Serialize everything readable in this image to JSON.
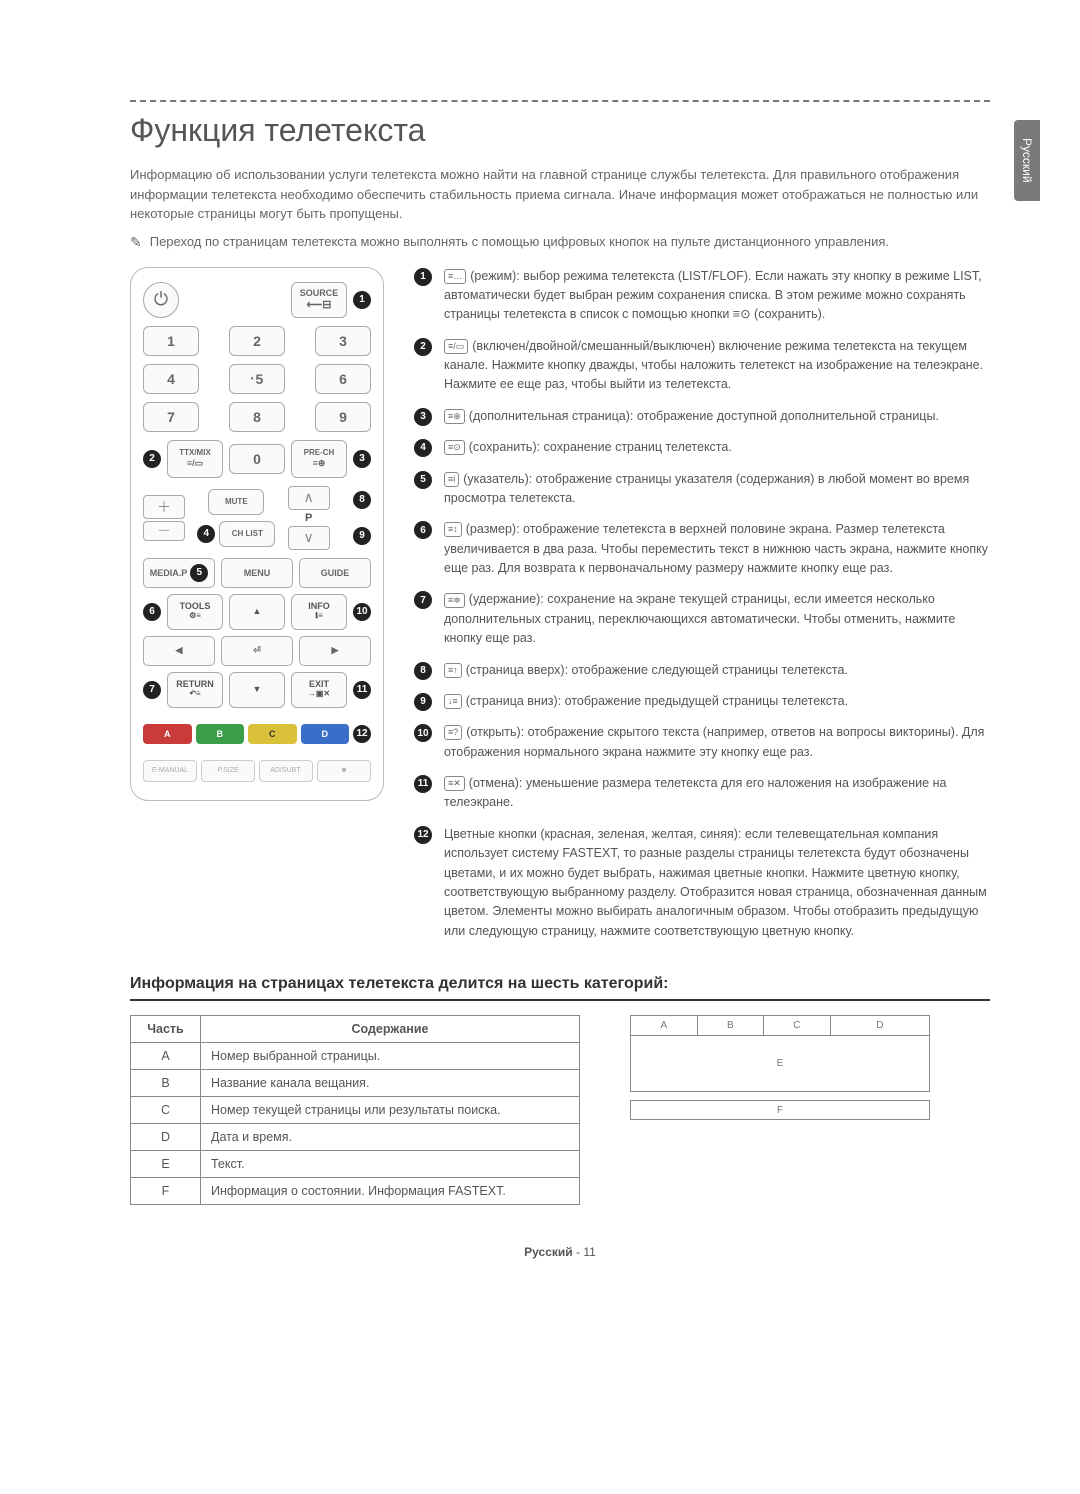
{
  "side_tab": "Русский",
  "title": "Функция телетекста",
  "intro": "Информацию об использовании услуги телетекста можно найти на главной странице службы телетекста. Для правильного отображения информации телетекста необходимо обеспечить стабильность приема сигнала. Иначе информация может отображаться не полностью или некоторые страницы могут быть пропущены.",
  "note": "Переход по страницам телетекста можно выполнять с помощью цифровых кнопок на пульте дистанционного управления.",
  "remote": {
    "source": "SOURCE",
    "nums": [
      "1",
      "2",
      "3",
      "4",
      "5",
      "6",
      "7",
      "8",
      "9",
      "0"
    ],
    "ttx": "TTX/MIX",
    "prech": "PRE-CH",
    "mute": "MUTE",
    "chlist": "CH LIST",
    "p_label": "P",
    "media": "MEDIA.P",
    "menu": "MENU",
    "guide": "GUIDE",
    "tools": "TOOLS",
    "info": "INFO",
    "return": "RETURN",
    "exit": "EXIT",
    "colors": {
      "a": "A",
      "b": "B",
      "c": "C",
      "d": "D"
    },
    "color_hex": {
      "a": "#c93a3a",
      "b": "#3a9e4a",
      "c": "#d9c23a",
      "d": "#3a6fc9"
    },
    "bottom": [
      "E-MANUAL",
      "P.SIZE",
      "AD/SUBT.",
      "■"
    ]
  },
  "items": [
    {
      "num": "1",
      "icon": "≡…",
      "text": "(режим): выбор режима телетекста (LIST/FLOF). Если нажать эту кнопку в режиме LIST, автоматически будет выбран режим сохранения списка. В этом режиме можно сохранять страницы телетекста в список с помощью кнопки ≡⊙ (сохранить)."
    },
    {
      "num": "2",
      "icon": "≡/▭",
      "text": "(включен/двойной/смешанный/выключен) включение режима телетекста на текущем канале. Нажмите кнопку дважды, чтобы наложить телетекст на изображение на телеэкране. Нажмите ее еще раз, чтобы выйти из телетекста."
    },
    {
      "num": "3",
      "icon": "≡⊕",
      "text": "(дополнительная страница): отображение доступной дополнительной страницы."
    },
    {
      "num": "4",
      "icon": "≡⊙",
      "text": "(сохранить): сохранение страниц телетекста."
    },
    {
      "num": "5",
      "icon": "≡i",
      "text": "(указатель): отображение страницы указателя (содержания) в любой момент во время просмотра телетекста."
    },
    {
      "num": "6",
      "icon": "≡↕",
      "text": "(размер): отображение телетекста в верхней половине экрана. Размер телетекста увеличивается в два раза. Чтобы переместить текст в нижнюю часть экрана, нажмите кнопку еще раз. Для возврата к первоначальному размеру нажмите кнопку еще раз."
    },
    {
      "num": "7",
      "icon": "≡≑",
      "text": "(удержание): сохранение на экране текущей страницы, если имеется несколько дополнительных страниц, переключающихся автоматически. Чтобы отменить, нажмите кнопку еще раз."
    },
    {
      "num": "8",
      "icon": "≡↑",
      "text": "(страница вверх): отображение следующей страницы телетекста."
    },
    {
      "num": "9",
      "icon": "↓≡",
      "text": "(страница вниз): отображение предыдущей страницы телетекста."
    },
    {
      "num": "10",
      "icon": "≡?",
      "text": "(открыть): отображение скрытого текста (например, ответов на вопросы викторины). Для отображения нормального экрана нажмите эту кнопку еще раз."
    },
    {
      "num": "11",
      "icon": "≡✕",
      "text": "(отмена): уменьшение размера телетекста для его наложения на изображение на телеэкране."
    },
    {
      "num": "12",
      "icon": "",
      "text": "Цветные кнопки (красная, зеленая, желтая, синяя): если телевещательная компания использует систему FASTEXT, то разные разделы страницы телетекста будут обозначены цветами, и их можно будет выбрать, нажимая цветные кнопки. Нажмите цветную кнопку, соответствующую выбранному разделу. Отобразится новая страница, обозначенная данным цветом. Элементы можно выбирать аналогичным образом. Чтобы отобразить предыдущую или следующую страницу, нажмите соответствующую цветную кнопку."
    }
  ],
  "categories_heading": "Информация на страницах телетекста делится на шесть категорий:",
  "table": {
    "headers": [
      "Часть",
      "Содержание"
    ],
    "rows": [
      [
        "A",
        "Номер выбранной страницы."
      ],
      [
        "B",
        "Название канала вещания."
      ],
      [
        "C",
        "Номер текущей страницы или результаты поиска."
      ],
      [
        "D",
        "Дата и время."
      ],
      [
        "E",
        "Текст."
      ],
      [
        "F",
        "Информация о состоянии. Информация FASTEXT."
      ]
    ]
  },
  "layout_labels": {
    "a": "A",
    "b": "B",
    "c": "C",
    "d": "D",
    "e": "E",
    "f": "F"
  },
  "footer": {
    "lang": "Русский",
    "sep": " - ",
    "page": "11"
  }
}
